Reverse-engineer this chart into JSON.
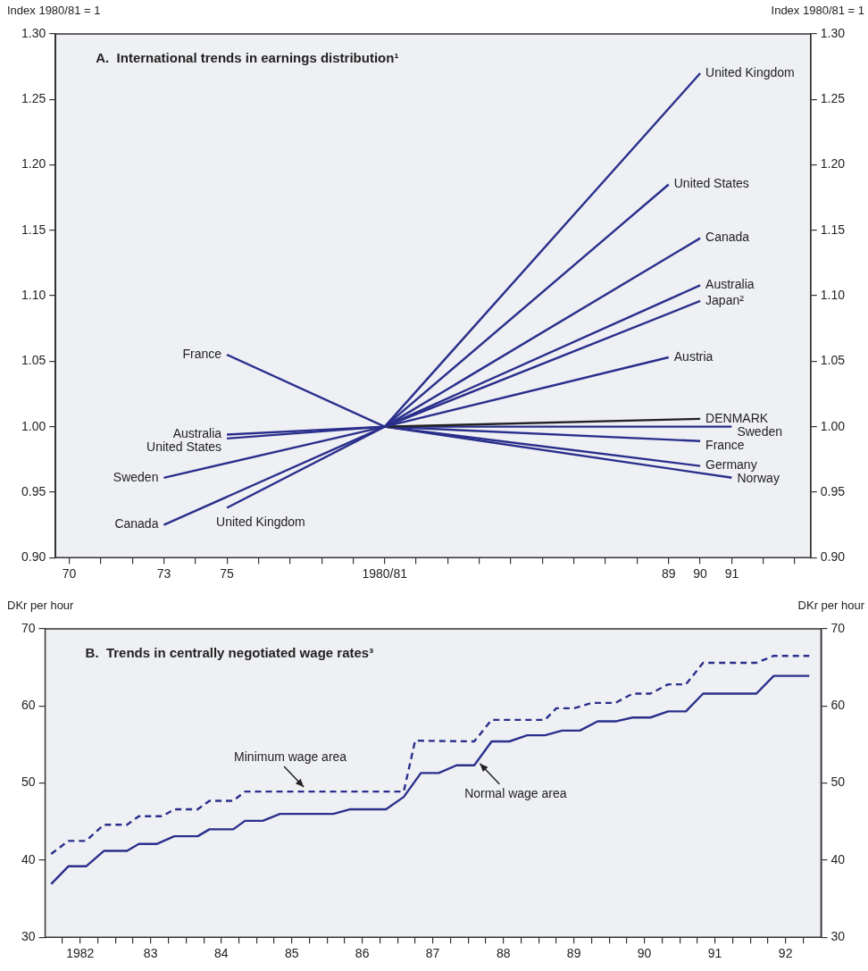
{
  "chart_data": [
    {
      "type": "line",
      "title": "A.  International trends in earnings distribution¹",
      "ylabel": "Index 1980/81 = 1",
      "y2label": "Index 1980/81 = 1",
      "xlim": [
        69.57,
        93.5
      ],
      "xticks": [
        70,
        {
          "value": 71,
          "label": null
        },
        {
          "value": 72,
          "label": null
        },
        73,
        {
          "value": 74,
          "label": null
        },
        75,
        {
          "value": 76,
          "label": null
        },
        {
          "value": 77,
          "label": null
        },
        {
          "value": 78,
          "label": null
        },
        {
          "value": 79,
          "label": null
        },
        {
          "value": 80,
          "label": "1980/81"
        },
        {
          "value": 81,
          "label": null
        },
        {
          "value": 82,
          "label": null
        },
        {
          "value": 83,
          "label": null
        },
        {
          "value": 84,
          "label": null
        },
        {
          "value": 85,
          "label": null
        },
        {
          "value": 86,
          "label": null
        },
        {
          "value": 87,
          "label": null
        },
        {
          "value": 88,
          "label": null
        },
        89,
        90,
        91,
        {
          "value": 92,
          "label": null
        },
        {
          "value": 93,
          "label": null
        }
      ],
      "ylim": [
        0.9,
        1.3
      ],
      "yticks": [
        {
          "value": 0.9,
          "label": "0.90"
        },
        {
          "value": 0.95,
          "label": "0.95"
        },
        {
          "value": 1.0,
          "label": "1.00"
        },
        {
          "value": 1.05,
          "label": "1.05"
        },
        {
          "value": 1.1,
          "label": "1.10"
        },
        {
          "value": 1.15,
          "label": "1.15"
        },
        {
          "value": 1.2,
          "label": "1.20"
        },
        {
          "value": 1.25,
          "label": "1.25"
        },
        {
          "value": 1.3,
          "label": "1.30"
        }
      ],
      "y2lim": [
        0.9,
        1.3
      ],
      "y2ticks": [
        {
          "value": 0.9,
          "label": "0.90"
        },
        {
          "value": 0.95,
          "label": "0.95"
        },
        {
          "value": 1.0,
          "label": "1.00"
        },
        {
          "value": 1.05,
          "label": "1.05"
        },
        {
          "value": 1.1,
          "label": "1.10"
        },
        {
          "value": 1.15,
          "label": "1.15"
        },
        {
          "value": 1.2,
          "label": "1.20"
        },
        {
          "value": 1.25,
          "label": "1.25"
        },
        {
          "value": 1.3,
          "label": "1.30"
        }
      ],
      "series": [
        {
          "name": "United Kingdom",
          "color": "#2a2f8c",
          "x": [
            75,
            80,
            90
          ],
          "values": [
            0.938,
            1.0,
            1.27
          ]
        },
        {
          "name": "United States",
          "color": "#2a2f8c",
          "x": [
            75,
            80,
            89
          ],
          "values": [
            0.991,
            1.0,
            1.185
          ]
        },
        {
          "name": "Canada",
          "color": "#2a2f8c",
          "x": [
            73,
            80,
            90
          ],
          "values": [
            0.925,
            1.0,
            1.144
          ]
        },
        {
          "name": "Australia",
          "color": "#2a2f8c",
          "x": [
            75,
            80,
            90
          ],
          "values": [
            0.994,
            1.0,
            1.108
          ]
        },
        {
          "name": "Japan²",
          "color": "#2a2f8c",
          "x": [
            80,
            90
          ],
          "values": [
            1.0,
            1.096
          ]
        },
        {
          "name": "Austria",
          "color": "#2a2f8c",
          "x": [
            80,
            89
          ],
          "values": [
            1.0,
            1.053
          ]
        },
        {
          "name": "DENMARK",
          "color": "#222222",
          "x": [
            80,
            90
          ],
          "values": [
            1.0,
            1.006
          ]
        },
        {
          "name": "Sweden",
          "color": "#2a2f8c",
          "x": [
            73,
            80,
            91
          ],
          "values": [
            0.961,
            1.0,
            1.0
          ]
        },
        {
          "name": "France",
          "color": "#2a2f8c",
          "x": [
            75,
            80,
            90
          ],
          "values": [
            1.055,
            1.0,
            0.989
          ]
        },
        {
          "name": "Germany",
          "color": "#2a2f8c",
          "x": [
            80,
            90
          ],
          "values": [
            1.0,
            0.97
          ]
        },
        {
          "name": "Norway",
          "color": "#2a2f8c",
          "x": [
            80,
            91
          ],
          "values": [
            1.0,
            0.961
          ]
        }
      ]
    },
    {
      "type": "line",
      "title": "B.  Trends in centrally negotiated wage rates³",
      "ylabel": "DKr per hour",
      "y2label": "DKr per hour",
      "xlim": [
        "1982",
        "1993"
      ],
      "xticks": [
        {
          "value": "1982-04",
          "label": null
        },
        {
          "value": "1982-07",
          "label": "1982"
        },
        {
          "value": "1982-10",
          "label": null
        },
        {
          "value": "1983-01",
          "label": null
        },
        {
          "value": "1983-04",
          "label": null
        },
        {
          "value": "1983-07",
          "label": "83"
        },
        {
          "value": "1983-10",
          "label": null
        },
        {
          "value": "1984-01",
          "label": null
        },
        {
          "value": "1984-04",
          "label": null
        },
        {
          "value": "1984-07",
          "label": "84"
        },
        {
          "value": "1984-10",
          "label": null
        },
        {
          "value": "1985-01",
          "label": null
        },
        {
          "value": "1985-04",
          "label": null
        },
        {
          "value": "1985-07",
          "label": "85"
        },
        {
          "value": "1985-10",
          "label": null
        },
        {
          "value": "1986-01",
          "label": null
        },
        {
          "value": "1986-04",
          "label": null
        },
        {
          "value": "1986-07",
          "label": "86"
        },
        {
          "value": "1986-10",
          "label": null
        },
        {
          "value": "1987-01",
          "label": null
        },
        {
          "value": "1987-04",
          "label": null
        },
        {
          "value": "1987-07",
          "label": "87"
        },
        {
          "value": "1987-10",
          "label": null
        },
        {
          "value": "1988-01",
          "label": null
        },
        {
          "value": "1988-04",
          "label": null
        },
        {
          "value": "1988-07",
          "label": "88"
        },
        {
          "value": "1988-10",
          "label": null
        },
        {
          "value": "1989-01",
          "label": null
        },
        {
          "value": "1989-04",
          "label": null
        },
        {
          "value": "1989-07",
          "label": "89"
        },
        {
          "value": "1989-10",
          "label": null
        },
        {
          "value": "1990-01",
          "label": null
        },
        {
          "value": "1990-04",
          "label": null
        },
        {
          "value": "1990-07",
          "label": "90"
        },
        {
          "value": "1990-10",
          "label": null
        },
        {
          "value": "1991-01",
          "label": null
        },
        {
          "value": "1991-04",
          "label": null
        },
        {
          "value": "1991-07",
          "label": "91"
        },
        {
          "value": "1991-10",
          "label": null
        },
        {
          "value": "1992-01",
          "label": null
        },
        {
          "value": "1992-04",
          "label": null
        },
        {
          "value": "1992-07",
          "label": "92"
        },
        {
          "value": "1992-10",
          "label": null
        }
      ],
      "ylim": [
        30,
        70
      ],
      "yticks": [
        30,
        40,
        50,
        60,
        70
      ],
      "y2lim": [
        30,
        70
      ],
      "y2ticks": [
        30,
        40,
        50,
        60,
        70
      ],
      "annotations": [
        {
          "text": "Minimum wage area",
          "x": "1985-09",
          "y": 48.9
        },
        {
          "text": "Normal wage area",
          "x": "1988-03",
          "y": 53.0
        }
      ],
      "series": [
        {
          "color": "#2a2f8c",
          "line_style": "dashed",
          "x": [
            "1982-02",
            "1982-05",
            "1982-08",
            "1982-11",
            "1983-03",
            "1983-05",
            "1983-09",
            "1983-11",
            "1984-03",
            "1984-05",
            "1984-09",
            "1984-11",
            "1987-02",
            "1987-04",
            "1988-02",
            "1988-05",
            "1989-02",
            "1989-04",
            "1989-07",
            "1989-10",
            "1990-02",
            "1990-05",
            "1990-08",
            "1990-11",
            "1991-02",
            "1991-05",
            "1992-02",
            "1992-05",
            "1992-11"
          ],
          "values": [
            40.8,
            42.5,
            42.5,
            44.6,
            44.6,
            45.7,
            45.7,
            46.6,
            46.6,
            47.7,
            47.7,
            48.9,
            48.9,
            55.5,
            55.4,
            58.2,
            58.2,
            59.7,
            59.7,
            60.4,
            60.4,
            61.6,
            61.6,
            62.8,
            62.8,
            65.6,
            65.6,
            66.5,
            66.5
          ]
        },
        {
          "color": "#2a2f8c",
          "line_style": "solid",
          "x": [
            "1982-02",
            "1982-05",
            "1982-08",
            "1982-11",
            "1983-03",
            "1983-05",
            "1983-08",
            "1983-11",
            "1984-03",
            "1984-05",
            "1984-09",
            "1984-11",
            "1985-02",
            "1985-05",
            "1986-02",
            "1986-05",
            "1986-11",
            "1987-02",
            "1987-05",
            "1987-08",
            "1987-11",
            "1988-02",
            "1988-05",
            "1988-08",
            "1988-11",
            "1989-02",
            "1989-05",
            "1989-08",
            "1989-11",
            "1990-02",
            "1990-05",
            "1990-08",
            "1990-11",
            "1991-02",
            "1991-05",
            "1992-02",
            "1992-05",
            "1992-11"
          ],
          "values": [
            36.9,
            39.2,
            39.2,
            41.2,
            41.2,
            42.1,
            42.1,
            43.1,
            43.1,
            44.0,
            44.0,
            45.1,
            45.1,
            46.0,
            46.0,
            46.6,
            46.6,
            48.2,
            51.3,
            51.3,
            52.3,
            52.3,
            55.4,
            55.4,
            56.2,
            56.2,
            56.8,
            56.8,
            58.0,
            58.0,
            58.5,
            58.5,
            59.3,
            59.3,
            61.6,
            61.6,
            63.9,
            63.9
          ]
        }
      ]
    }
  ]
}
